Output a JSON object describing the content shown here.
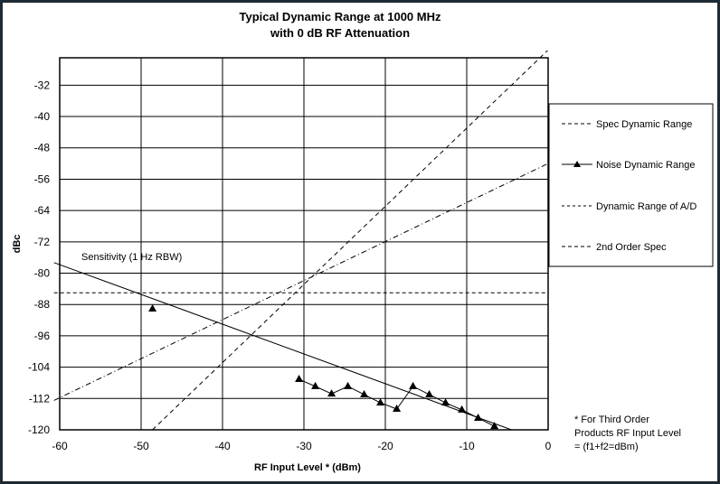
{
  "chart_data": {
    "type": "line",
    "title": "Typical Dynamic Range at 1000 MHz",
    "subtitle": "with 0 dB RF Attenuation",
    "xlabel": "RF Input Level * (dBm)",
    "ylabel": "dBc",
    "xlim": [
      -60,
      0
    ],
    "ylim": [
      -120,
      -25
    ],
    "x_ticks": [
      -60,
      -50,
      -40,
      -30,
      -20,
      -10,
      0
    ],
    "x_tick_labels": [
      "-60",
      "-50",
      "-40",
      "-30",
      "-20",
      "-10",
      "0"
    ],
    "y_ticks": [
      -32,
      -40,
      -48,
      -56,
      -64,
      -72,
      -80,
      -88,
      -96,
      -104,
      -112,
      -120
    ],
    "y_tick_labels": [
      "-32",
      "-40",
      "-48",
      "-56",
      "-64",
      "-72",
      "-80",
      "-88",
      "-96",
      "-104",
      "-112",
      "-120"
    ],
    "grid": true,
    "legend_position": "right",
    "series": [
      {
        "name": "Spec Dynamic Range",
        "style": "long-dash",
        "x": [
          -48.6,
          0
        ],
        "y": [
          -120,
          -23
        ]
      },
      {
        "name": "Noise Dynamic Range",
        "style": "solid-triangle",
        "line_x": [
          -60.7,
          -4.5
        ],
        "line_y": [
          -77.3,
          -120
        ],
        "x": [
          -48.6,
          -30.6,
          -28.6,
          -26.6,
          -24.6,
          -22.6,
          -20.6,
          -18.6,
          -16.6,
          -14.6,
          -12.6,
          -10.6,
          -8.6,
          -6.6
        ],
        "y": [
          -89.1,
          -107.1,
          -108.9,
          -110.8,
          -108.9,
          -111.0,
          -113.1,
          -114.7,
          -108.9,
          -111.0,
          -113.1,
          -114.9,
          -117.0,
          -119.1
        ]
      },
      {
        "name": "Dynamic Range of A/D",
        "style": "short-dash",
        "x": [
          -60.7,
          0
        ],
        "y": [
          -85,
          -85
        ]
      },
      {
        "name": "2nd Order Spec",
        "style": "dash-dot",
        "x": [
          -60.7,
          0
        ],
        "y": [
          -112.5,
          -52
        ]
      }
    ],
    "annotations": [
      {
        "text": "Sensitivity (1 Hz RBW)",
        "x": -57,
        "y": -77
      }
    ],
    "footnote": [
      "* For Third Order",
      "Products RF Input Level",
      "= (f1+f2=dBm)"
    ]
  }
}
